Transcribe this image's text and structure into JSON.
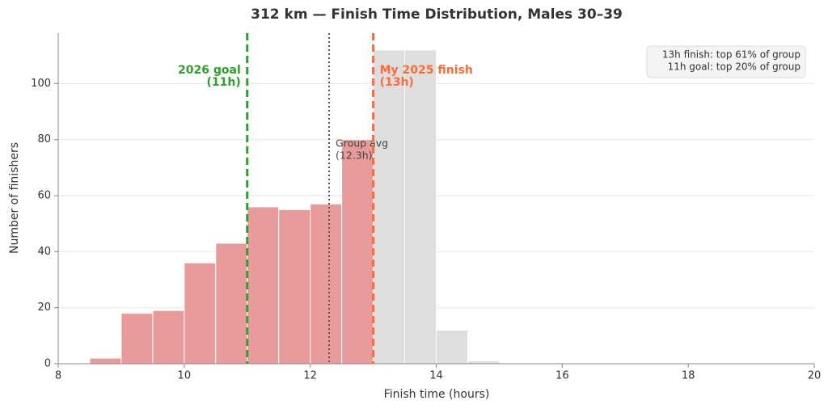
{
  "chart_data": {
    "type": "histogram",
    "title": "312 km — Finish Time Distribution, Males 30–39",
    "xlabel": "Finish time (hours)",
    "ylabel": "Number of finishers",
    "bins": [
      8.5,
      9,
      9.5,
      10,
      10.5,
      11,
      11.5,
      12,
      12.5,
      13,
      13.5,
      14,
      14.5,
      15
    ],
    "counts": [
      2,
      18,
      19,
      36,
      43,
      56,
      55,
      57,
      80,
      112,
      112,
      12,
      1
    ],
    "colors": [
      "#e99a9b",
      "#e99a9b",
      "#e99a9b",
      "#e99a9b",
      "#e99a9b",
      "#e99a9b",
      "#e99a9b",
      "#e99a9b",
      "#e99a9b",
      "#dedede",
      "#dedede",
      "#dedede",
      "#dedede"
    ],
    "xlim": [
      8,
      20
    ],
    "ylim": [
      0,
      118
    ],
    "xticks": [
      8,
      10,
      12,
      14,
      16,
      18,
      20
    ],
    "yticks": [
      0,
      20,
      40,
      60,
      80,
      100
    ],
    "grid": true,
    "vlines": [
      {
        "x": 11,
        "label": [
          "2026 goal",
          "(11h)"
        ],
        "color": "#2ca02c",
        "style": "dashed"
      },
      {
        "x": 12.3,
        "label": [
          "Group avg",
          "(12.3h)"
        ],
        "color": "#555555",
        "style": "dotted"
      },
      {
        "x": 13,
        "label": [
          "My 2025 finish",
          "(13h)"
        ],
        "color": "#ff6b35",
        "style": "dashed"
      }
    ],
    "info_box": [
      "13h finish: top 61% of group",
      "11h goal: top 20% of group"
    ]
  }
}
